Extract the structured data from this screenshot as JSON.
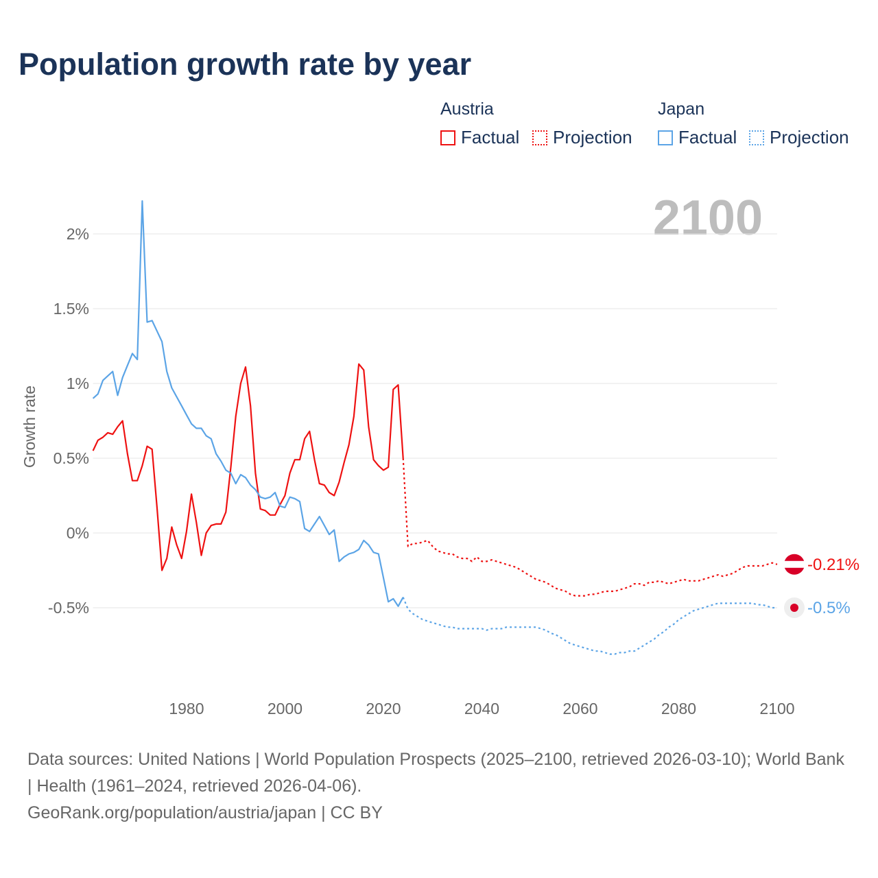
{
  "title": "Population growth rate by year",
  "legend": {
    "groups": [
      {
        "name": "Austria",
        "factual_label": "Factual",
        "projection_label": "Projection",
        "color": "#ee1111"
      },
      {
        "name": "Japan",
        "factual_label": "Factual",
        "projection_label": "Projection",
        "color": "#5ba4e6"
      }
    ]
  },
  "year_overlay": "2100",
  "footer": {
    "sources": "Data sources: United Nations | World Population Prospects (2025–2100, retrieved 2026-03-10); World Bank | Health (1961–2024, retrieved 2026-04-06).",
    "attribution": "GeoRank.org/population/austria/japan | CC BY"
  },
  "chart_data": {
    "type": "line",
    "title": "Population growth rate by year",
    "xlabel": "",
    "ylabel": "Growth rate",
    "xlim": [
      1961,
      2100
    ],
    "ylim": [
      -1.03,
      2.25
    ],
    "x_ticks": [
      1980,
      2000,
      2020,
      2040,
      2060,
      2080,
      2100
    ],
    "y_ticks": [
      {
        "v": 2,
        "label": "2%"
      },
      {
        "v": 1.5,
        "label": "1.5%"
      },
      {
        "v": 1,
        "label": "1%"
      },
      {
        "v": 0.5,
        "label": "0.5%"
      },
      {
        "v": 0,
        "label": "0%"
      },
      {
        "v": -0.5,
        "label": "-0.5%"
      }
    ],
    "grid": true,
    "series": [
      {
        "name": "Austria Factual",
        "color": "#ee1111",
        "dashed": false,
        "start_year": 1961,
        "values": [
          0.55,
          0.62,
          0.64,
          0.67,
          0.66,
          0.71,
          0.75,
          0.53,
          0.35,
          0.35,
          0.45,
          0.58,
          0.56,
          0.17,
          -0.25,
          -0.17,
          0.04,
          -0.08,
          -0.17,
          0.01,
          0.26,
          0.07,
          -0.15,
          0.0,
          0.05,
          0.06,
          0.06,
          0.14,
          0.44,
          0.78,
          1.0,
          1.11,
          0.85,
          0.4,
          0.16,
          0.15,
          0.12,
          0.12,
          0.19,
          0.25,
          0.4,
          0.49,
          0.49,
          0.63,
          0.68,
          0.49,
          0.33,
          0.32,
          0.27,
          0.25,
          0.34,
          0.47,
          0.59,
          0.78,
          1.13,
          1.09,
          0.71,
          0.49,
          0.45,
          0.42,
          0.44,
          0.96,
          0.99,
          0.5
        ]
      },
      {
        "name": "Austria Projection",
        "color": "#ee1111",
        "dashed": true,
        "start_year": 2025,
        "values": [
          -0.09,
          -0.07,
          -0.07,
          -0.06,
          -0.05,
          -0.09,
          -0.12,
          -0.13,
          -0.14,
          -0.14,
          -0.16,
          -0.17,
          -0.17,
          -0.19,
          -0.16,
          -0.19,
          -0.19,
          -0.18,
          -0.19,
          -0.2,
          -0.21,
          -0.22,
          -0.23,
          -0.25,
          -0.27,
          -0.29,
          -0.31,
          -0.32,
          -0.33,
          -0.35,
          -0.37,
          -0.38,
          -0.39,
          -0.41,
          -0.42,
          -0.42,
          -0.42,
          -0.41,
          -0.41,
          -0.4,
          -0.39,
          -0.39,
          -0.39,
          -0.38,
          -0.37,
          -0.36,
          -0.34,
          -0.34,
          -0.35,
          -0.33,
          -0.33,
          -0.32,
          -0.33,
          -0.34,
          -0.33,
          -0.32,
          -0.31,
          -0.32,
          -0.32,
          -0.32,
          -0.31,
          -0.3,
          -0.29,
          -0.28,
          -0.29,
          -0.28,
          -0.27,
          -0.25,
          -0.23,
          -0.22,
          -0.22,
          -0.22,
          -0.22,
          -0.21,
          -0.2,
          -0.21
        ]
      },
      {
        "name": "Japan Factual",
        "color": "#5ba4e6",
        "dashed": false,
        "start_year": 1961,
        "values": [
          0.9,
          0.93,
          1.02,
          1.05,
          1.08,
          0.92,
          1.04,
          1.12,
          1.2,
          1.16,
          2.22,
          1.41,
          1.42,
          1.35,
          1.28,
          1.08,
          0.97,
          0.91,
          0.85,
          0.79,
          0.73,
          0.7,
          0.7,
          0.65,
          0.63,
          0.53,
          0.48,
          0.42,
          0.4,
          0.33,
          0.39,
          0.37,
          0.32,
          0.29,
          0.24,
          0.23,
          0.24,
          0.27,
          0.18,
          0.17,
          0.24,
          0.23,
          0.21,
          0.03,
          0.01,
          0.06,
          0.11,
          0.05,
          -0.01,
          0.02,
          -0.19,
          -0.16,
          -0.14,
          -0.13,
          -0.11,
          -0.05,
          -0.08,
          -0.13,
          -0.14,
          -0.3,
          -0.46,
          -0.44,
          -0.49,
          -0.43
        ]
      },
      {
        "name": "Japan Projection",
        "color": "#5ba4e6",
        "dashed": true,
        "start_year": 2025,
        "values": [
          -0.51,
          -0.54,
          -0.56,
          -0.58,
          -0.59,
          -0.6,
          -0.61,
          -0.62,
          -0.63,
          -0.63,
          -0.64,
          -0.64,
          -0.64,
          -0.64,
          -0.64,
          -0.64,
          -0.65,
          -0.64,
          -0.64,
          -0.64,
          -0.63,
          -0.63,
          -0.63,
          -0.63,
          -0.63,
          -0.63,
          -0.63,
          -0.64,
          -0.65,
          -0.67,
          -0.68,
          -0.7,
          -0.72,
          -0.74,
          -0.75,
          -0.76,
          -0.77,
          -0.78,
          -0.79,
          -0.79,
          -0.8,
          -0.81,
          -0.81,
          -0.8,
          -0.8,
          -0.79,
          -0.79,
          -0.77,
          -0.75,
          -0.73,
          -0.71,
          -0.68,
          -0.66,
          -0.63,
          -0.61,
          -0.58,
          -0.56,
          -0.54,
          -0.52,
          -0.51,
          -0.5,
          -0.49,
          -0.48,
          -0.47,
          -0.47,
          -0.47,
          -0.47,
          -0.47,
          -0.47,
          -0.47,
          -0.47,
          -0.48,
          -0.48,
          -0.49,
          -0.5,
          -0.5
        ]
      }
    ],
    "end_labels": [
      {
        "country": "Austria",
        "label": "-0.21%",
        "value": -0.21,
        "color": "#ee1111"
      },
      {
        "country": "Japan",
        "label": "-0.5%",
        "value": -0.5,
        "color": "#5ba4e6"
      }
    ]
  }
}
